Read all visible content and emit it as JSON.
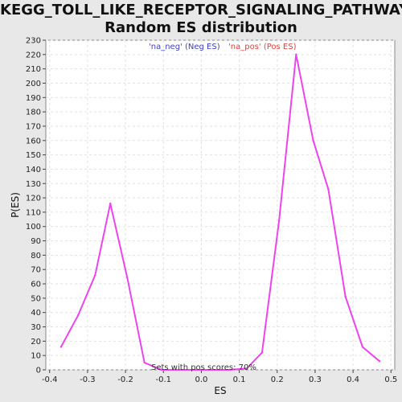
{
  "chart_data": {
    "type": "line",
    "title_line1": "KEGG_TOLL_LIKE_RECEPTOR_SIGNALING_PATHWAY:",
    "title_line2": "Random ES distribution",
    "xlabel": "ES",
    "ylabel": "P(ES)",
    "xlim": [
      -0.41,
      0.51
    ],
    "ylim": [
      0,
      230
    ],
    "xticks": [
      "-0.4",
      "-0.3",
      "-0.2",
      "-0.1",
      "0.0",
      "0.1",
      "0.2",
      "0.3",
      "0.4",
      "0.5"
    ],
    "xtick_values": [
      -0.4,
      -0.3,
      -0.2,
      -0.1,
      0.0,
      0.1,
      0.2,
      0.3,
      0.4,
      0.5
    ],
    "yticks": [
      0,
      10,
      20,
      30,
      40,
      50,
      60,
      70,
      80,
      90,
      100,
      110,
      120,
      130,
      140,
      150,
      160,
      170,
      180,
      190,
      200,
      210,
      220,
      230
    ],
    "grid": true,
    "legend": [
      {
        "label": "'na_neg' (Neg ES)",
        "color": "#4040c0"
      },
      {
        "label": "'na_pos' (Pos ES)",
        "color": "#e04040"
      }
    ],
    "annotation": "Sets with pos scores: 70%",
    "series": [
      {
        "color": "#ee44ee",
        "x": [
          -0.37,
          -0.325,
          -0.28,
          -0.24,
          -0.195,
          -0.15,
          -0.105,
          -0.06,
          -0.015,
          0.03,
          0.075,
          0.12,
          0.16,
          0.205,
          0.25,
          0.295,
          0.335,
          0.38,
          0.425,
          0.47
        ],
        "y": [
          16,
          38,
          66,
          116,
          64,
          5,
          0,
          0,
          0,
          0,
          0,
          1,
          12,
          104,
          220,
          160,
          126,
          51,
          16,
          6
        ]
      }
    ]
  }
}
